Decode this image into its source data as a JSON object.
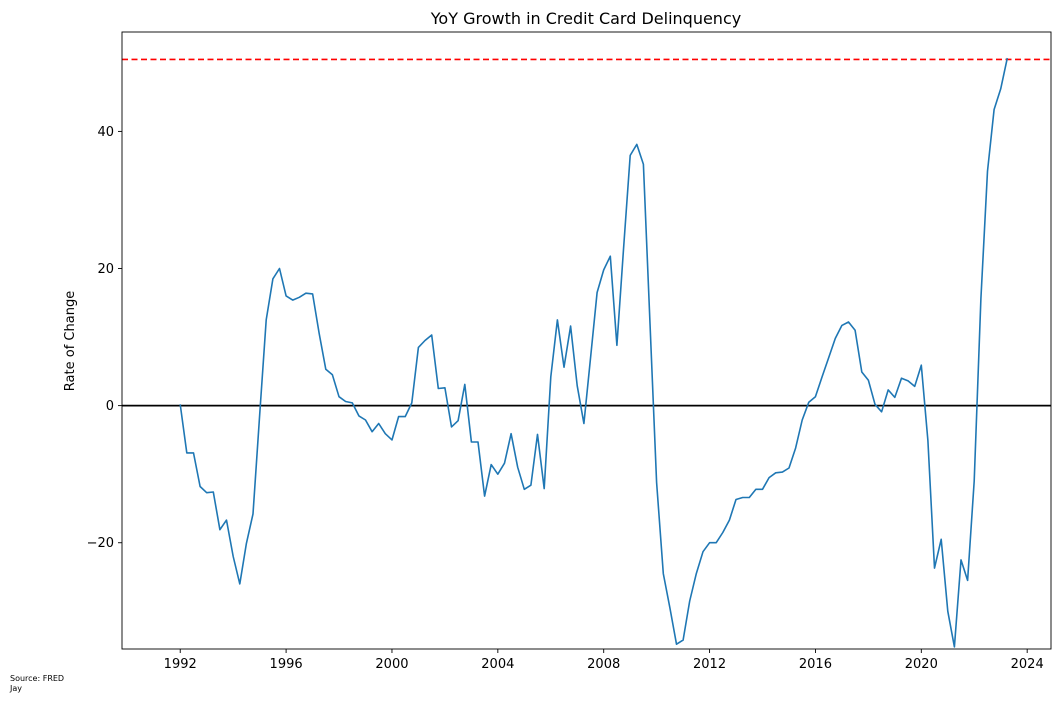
{
  "chart_data": {
    "type": "line",
    "title": "YoY Growth in Credit Card Delinquency",
    "xlabel": "",
    "ylabel": "Rate of Change",
    "xlim": [
      1989.8,
      2024.9
    ],
    "ylim": [
      -35.5,
      54.5
    ],
    "x_ticks": [
      1992,
      1996,
      2000,
      2004,
      2008,
      2012,
      2016,
      2020,
      2024
    ],
    "y_ticks": [
      -20,
      0,
      20,
      40
    ],
    "y_tick_labels": [
      "−20",
      "0",
      "20",
      "40"
    ],
    "grid": false,
    "series": [
      {
        "color": "#1f77b4",
        "x": [
          1992.0,
          1992.25,
          1992.5,
          1992.75,
          1993.0,
          1993.25,
          1993.5,
          1993.75,
          1994.0,
          1994.25,
          1994.5,
          1994.75,
          1995.0,
          1995.25,
          1995.5,
          1995.75,
          1996.0,
          1996.25,
          1996.5,
          1996.75,
          1997.0,
          1997.25,
          1997.5,
          1997.75,
          1998.0,
          1998.25,
          1998.5,
          1998.75,
          1999.0,
          1999.25,
          1999.5,
          1999.75,
          2000.0,
          2000.25,
          2000.5,
          2000.75,
          2001.0,
          2001.25,
          2001.5,
          2001.75,
          2002.0,
          2002.25,
          2002.5,
          2002.75,
          2003.0,
          2003.25,
          2003.5,
          2003.75,
          2004.0,
          2004.25,
          2004.5,
          2004.75,
          2005.0,
          2005.25,
          2005.5,
          2005.75,
          2006.0,
          2006.25,
          2006.5,
          2006.75,
          2007.0,
          2007.25,
          2007.5,
          2007.75,
          2008.0,
          2008.25,
          2008.5,
          2008.75,
          2009.0,
          2009.25,
          2009.5,
          2009.75,
          2010.0,
          2010.25,
          2010.5,
          2010.75,
          2011.0,
          2011.25,
          2011.5,
          2011.75,
          2012.0,
          2012.25,
          2012.5,
          2012.75,
          2013.0,
          2013.25,
          2013.5,
          2013.75,
          2014.0,
          2014.25,
          2014.5,
          2014.75,
          2015.0,
          2015.25,
          2015.5,
          2015.75,
          2016.0,
          2016.25,
          2016.5,
          2016.75,
          2017.0,
          2017.25,
          2017.5,
          2017.75,
          2018.0,
          2018.25,
          2018.5,
          2018.75,
          2019.0,
          2019.25,
          2019.5,
          2019.75,
          2020.0,
          2020.25,
          2020.5,
          2020.75,
          2021.0,
          2021.25,
          2021.5,
          2021.75,
          2022.0,
          2022.25,
          2022.5,
          2022.75,
          2023.0,
          2023.25
        ],
        "y": [
          0.2,
          -6.9,
          -6.9,
          -11.8,
          -12.7,
          -12.6,
          -18.1,
          -16.7,
          -22.0,
          -26.0,
          -20.1,
          -15.8,
          -1.5,
          12.5,
          18.5,
          20.0,
          16.0,
          15.4,
          15.8,
          16.4,
          16.3,
          10.5,
          5.3,
          4.5,
          1.3,
          0.6,
          0.4,
          -1.5,
          -2.1,
          -3.8,
          -2.6,
          -4.1,
          -5.0,
          -1.6,
          -1.6,
          0.4,
          8.5,
          9.5,
          10.3,
          2.5,
          2.6,
          -3.1,
          -2.2,
          3.1,
          -5.3,
          -5.3,
          -13.2,
          -8.6,
          -10.0,
          -8.4,
          -4.1,
          -9.0,
          -12.2,
          -11.6,
          -4.2,
          -12.1,
          4.2,
          12.5,
          5.6,
          11.6,
          2.9,
          -2.6,
          6.9,
          16.5,
          19.8,
          21.8,
          8.8,
          23.0,
          36.5,
          38.1,
          35.2,
          12.0,
          -11.2,
          -24.5,
          -29.5,
          -34.8,
          -34.2,
          -28.5,
          -24.5,
          -21.3,
          -20.0,
          -20.0,
          -18.5,
          -16.7,
          -13.7,
          -13.4,
          -13.4,
          -12.2,
          -12.2,
          -10.5,
          -9.8,
          -9.7,
          -9.1,
          -6.2,
          -2.1,
          0.5,
          1.3,
          4.2,
          7.0,
          9.8,
          11.7,
          12.2,
          11.0,
          4.9,
          3.7,
          0.2,
          -0.9,
          2.3,
          1.2,
          4.0,
          3.6,
          2.8,
          5.9,
          -5.1,
          -23.7,
          -19.5,
          -30.0,
          -35.2,
          -22.5,
          -25.5,
          -11.0,
          15.6,
          34.2,
          43.2,
          46.2,
          50.7
        ]
      }
    ],
    "reference_lines": [
      {
        "kind": "horizontal",
        "y": 0,
        "color": "#000000",
        "style": "solid"
      },
      {
        "kind": "horizontal",
        "y": 50.5,
        "color": "#ff0000",
        "style": "dashed"
      }
    ]
  },
  "footer": {
    "source_line": "Source: FRED",
    "author_line": "Jay"
  }
}
